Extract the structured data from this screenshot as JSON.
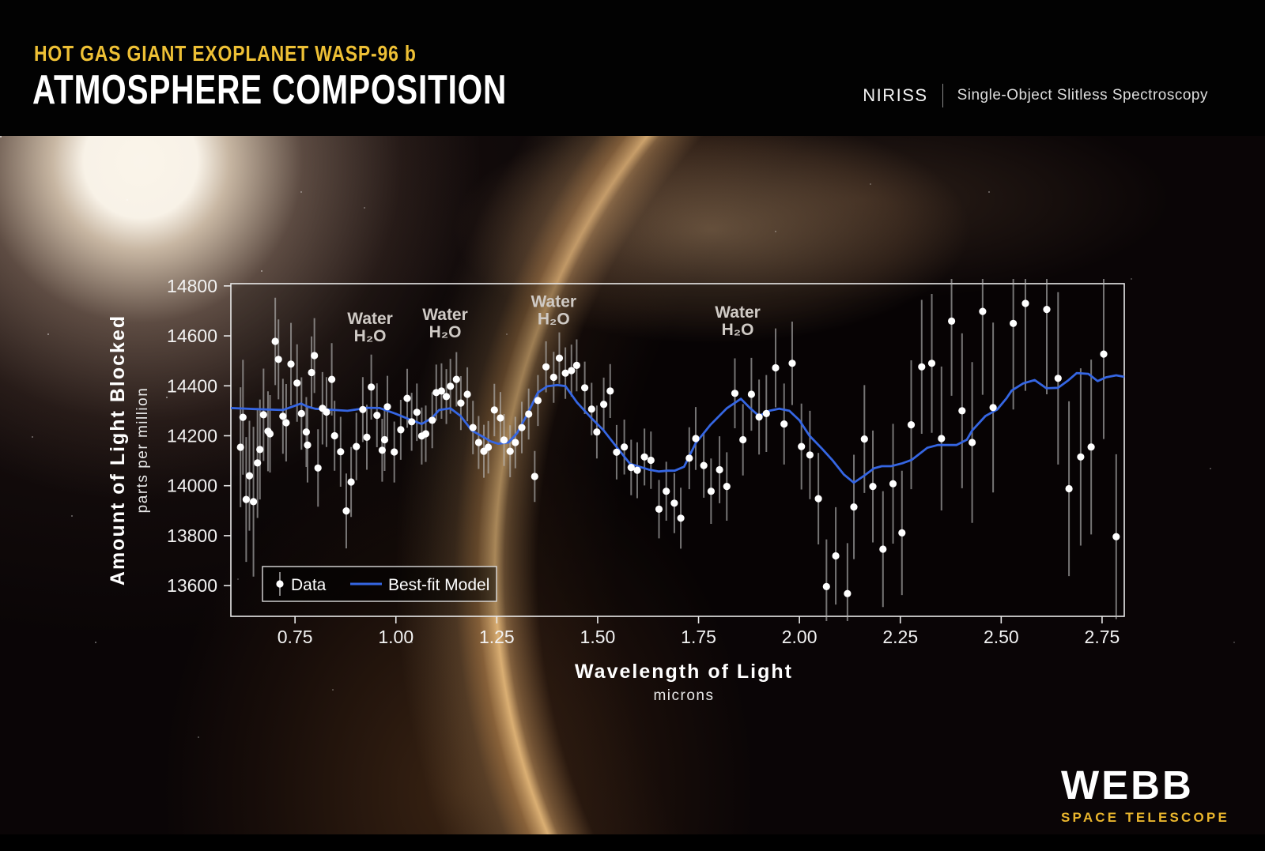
{
  "header": {
    "eyebrow": "HOT GAS GIANT EXOPLANET WASP-96 b",
    "title": "ATMOSPHERE COMPOSITION",
    "instrument": "NIRISS",
    "instrument_desc": "Single-Object Slitless Spectroscopy"
  },
  "logo": {
    "name": "WEBB",
    "sub": "SPACE TELESCOPE"
  },
  "chart_data": {
    "type": "scatter",
    "xlabel": "Wavelength of Light",
    "xlabel_sub": "microns",
    "ylabel": "Amount of Light Blocked",
    "ylabel_sub": "parts per million",
    "xlim": [
      0.591,
      2.805
    ],
    "ylim": [
      13477,
      14809
    ],
    "grid": false,
    "legend_position": "lower-left",
    "x_ticks": [
      0.75,
      1.0,
      1.25,
      1.5,
      1.75,
      2.0,
      2.25,
      2.5,
      2.75
    ],
    "x_tick_labels": [
      "0.75",
      "1.00",
      "1.25",
      "1.50",
      "1.75",
      "2.00",
      "2.25",
      "2.50",
      "2.75"
    ],
    "y_ticks": [
      14800,
      14600,
      14400,
      14200,
      14000,
      13800,
      13600
    ],
    "y_tick_labels": [
      "14800",
      "14600",
      "14400",
      "14200",
      "14000",
      "13800",
      "13600"
    ],
    "legend": {
      "data_label": "Data",
      "model_label": "Best-fit Model"
    },
    "annotations": [
      {
        "x": 0.936,
        "y": 14648,
        "line1": "Water",
        "line2": "H₂O"
      },
      {
        "x": 1.122,
        "y": 14664,
        "line1": "Water",
        "line2": "H₂O"
      },
      {
        "x": 1.391,
        "y": 14715,
        "line1": "Water",
        "line2": "H₂O"
      },
      {
        "x": 1.847,
        "y": 14673,
        "line1": "Water",
        "line2": "H₂O"
      }
    ],
    "colors": {
      "point": "#ffffff",
      "error_bar": "#b9b9b9",
      "model": "#3566e3",
      "axis": "#e9e9e9",
      "text": "#f2f2f2",
      "annotation": "#cfcac5",
      "accent_yellow": "#eec035"
    },
    "series": [
      {
        "name": "Data",
        "type": "scatter-errorbar",
        "points": [
          [
            0.615,
            14154,
            240
          ],
          [
            0.621,
            14274,
            230
          ],
          [
            0.629,
            13945,
            250
          ],
          [
            0.637,
            14040,
            220
          ],
          [
            0.647,
            13936,
            300
          ],
          [
            0.657,
            14091,
            220
          ],
          [
            0.663,
            14145,
            200
          ],
          [
            0.672,
            14284,
            185
          ],
          [
            0.683,
            14218,
            160
          ],
          [
            0.688,
            14208,
            155
          ],
          [
            0.701,
            14578,
            175
          ],
          [
            0.709,
            14506,
            160
          ],
          [
            0.72,
            14278,
            150
          ],
          [
            0.728,
            14252,
            155
          ],
          [
            0.74,
            14487,
            165
          ],
          [
            0.755,
            14411,
            155
          ],
          [
            0.766,
            14289,
            145
          ],
          [
            0.778,
            14215,
            140
          ],
          [
            0.781,
            14163,
            150
          ],
          [
            0.791,
            14453,
            145
          ],
          [
            0.798,
            14521,
            150
          ],
          [
            0.807,
            14071,
            155
          ],
          [
            0.818,
            14310,
            145
          ],
          [
            0.828,
            14295,
            140
          ],
          [
            0.841,
            14426,
            145
          ],
          [
            0.848,
            14200,
            140
          ],
          [
            0.863,
            14136,
            140
          ],
          [
            0.877,
            13899,
            150
          ],
          [
            0.889,
            14015,
            140
          ],
          [
            0.902,
            14157,
            135
          ],
          [
            0.918,
            14305,
            130
          ],
          [
            0.928,
            14194,
            130
          ],
          [
            0.939,
            14395,
            130
          ],
          [
            0.953,
            14282,
            128
          ],
          [
            0.966,
            14142,
            126
          ],
          [
            0.972,
            14184,
            125
          ],
          [
            0.979,
            14316,
            124
          ],
          [
            0.996,
            14135,
            122
          ],
          [
            1.012,
            14224,
            120
          ],
          [
            1.028,
            14350,
            118
          ],
          [
            1.039,
            14256,
            116
          ],
          [
            1.052,
            14294,
            115
          ],
          [
            1.064,
            14199,
            114
          ],
          [
            1.074,
            14208,
            113
          ],
          [
            1.09,
            14262,
            112
          ],
          [
            1.1,
            14373,
            112
          ],
          [
            1.113,
            14379,
            111
          ],
          [
            1.125,
            14357,
            110
          ],
          [
            1.135,
            14398,
            110
          ],
          [
            1.15,
            14426,
            109
          ],
          [
            1.161,
            14331,
            108
          ],
          [
            1.177,
            14366,
            108
          ],
          [
            1.191,
            14233,
            107
          ],
          [
            1.205,
            14173,
            106
          ],
          [
            1.218,
            14138,
            106
          ],
          [
            1.229,
            14154,
            105
          ],
          [
            1.244,
            14303,
            105
          ],
          [
            1.259,
            14271,
            104
          ],
          [
            1.268,
            14183,
            104
          ],
          [
            1.283,
            14138,
            104
          ],
          [
            1.296,
            14173,
            103
          ],
          [
            1.312,
            14233,
            103
          ],
          [
            1.329,
            14287,
            102
          ],
          [
            1.344,
            14037,
            102
          ],
          [
            1.352,
            14341,
            102
          ],
          [
            1.372,
            14476,
            102
          ],
          [
            1.391,
            14434,
            102
          ],
          [
            1.405,
            14511,
            103
          ],
          [
            1.42,
            14451,
            103
          ],
          [
            1.435,
            14461,
            104
          ],
          [
            1.448,
            14482,
            104
          ],
          [
            1.468,
            14392,
            105
          ],
          [
            1.485,
            14307,
            105
          ],
          [
            1.498,
            14215,
            106
          ],
          [
            1.515,
            14326,
            107
          ],
          [
            1.531,
            14379,
            108
          ],
          [
            1.547,
            14134,
            109
          ],
          [
            1.566,
            14155,
            110
          ],
          [
            1.583,
            14073,
            111
          ],
          [
            1.598,
            14062,
            112
          ],
          [
            1.616,
            14115,
            114
          ],
          [
            1.632,
            14102,
            115
          ],
          [
            1.652,
            13906,
            117
          ],
          [
            1.67,
            13978,
            118
          ],
          [
            1.69,
            13930,
            120
          ],
          [
            1.706,
            13870,
            122
          ],
          [
            1.727,
            14110,
            124
          ],
          [
            1.743,
            14189,
            126
          ],
          [
            1.763,
            14081,
            129
          ],
          [
            1.781,
            13978,
            131
          ],
          [
            1.802,
            14064,
            134
          ],
          [
            1.82,
            13997,
            137
          ],
          [
            1.84,
            14370,
            140
          ],
          [
            1.86,
            14184,
            143
          ],
          [
            1.881,
            14366,
            146
          ],
          [
            1.9,
            14275,
            150
          ],
          [
            1.918,
            14289,
            154
          ],
          [
            1.941,
            14472,
            158
          ],
          [
            1.962,
            14247,
            162
          ],
          [
            1.982,
            14490,
            167
          ],
          [
            2.005,
            14157,
            172
          ],
          [
            2.026,
            14123,
            177
          ],
          [
            2.047,
            13948,
            183
          ],
          [
            2.067,
            13596,
            189
          ],
          [
            2.09,
            13719,
            195
          ],
          [
            2.119,
            13568,
            202
          ],
          [
            2.135,
            13915,
            209
          ],
          [
            2.161,
            14187,
            216
          ],
          [
            2.182,
            13997,
            224
          ],
          [
            2.207,
            13746,
            232
          ],
          [
            2.232,
            14008,
            240
          ],
          [
            2.254,
            13811,
            249
          ],
          [
            2.277,
            14244,
            258
          ],
          [
            2.303,
            14476,
            268
          ],
          [
            2.328,
            14490,
            278
          ],
          [
            2.352,
            14189,
            288
          ],
          [
            2.377,
            14659,
            299
          ],
          [
            2.403,
            14300,
            310
          ],
          [
            2.428,
            14173,
            322
          ],
          [
            2.454,
            14698,
            334
          ],
          [
            2.48,
            14313,
            340
          ],
          [
            2.53,
            14650,
            345
          ],
          [
            2.56,
            14730,
            350
          ],
          [
            2.613,
            14706,
            340
          ],
          [
            2.641,
            14430,
            345
          ],
          [
            2.668,
            13988,
            350
          ],
          [
            2.697,
            14115,
            355
          ],
          [
            2.723,
            14155,
            350
          ],
          [
            2.754,
            14527,
            340
          ],
          [
            2.785,
            13796,
            330
          ]
        ]
      },
      {
        "name": "Best-fit Model",
        "type": "line",
        "points": [
          [
            0.591,
            14311
          ],
          [
            0.65,
            14307
          ],
          [
            0.72,
            14303
          ],
          [
            0.765,
            14329
          ],
          [
            0.78,
            14317
          ],
          [
            0.8,
            14308
          ],
          [
            0.88,
            14300
          ],
          [
            0.93,
            14312
          ],
          [
            0.96,
            14311
          ],
          [
            1.0,
            14288
          ],
          [
            1.03,
            14268
          ],
          [
            1.064,
            14247
          ],
          [
            1.09,
            14272
          ],
          [
            1.107,
            14303
          ],
          [
            1.135,
            14310
          ],
          [
            1.16,
            14280
          ],
          [
            1.188,
            14221
          ],
          [
            1.217,
            14195
          ],
          [
            1.234,
            14178
          ],
          [
            1.253,
            14168
          ],
          [
            1.279,
            14173
          ],
          [
            1.3,
            14210
          ],
          [
            1.325,
            14284
          ],
          [
            1.352,
            14373
          ],
          [
            1.375,
            14398
          ],
          [
            1.4,
            14403
          ],
          [
            1.42,
            14399
          ],
          [
            1.449,
            14333
          ],
          [
            1.485,
            14270
          ],
          [
            1.515,
            14221
          ],
          [
            1.547,
            14155
          ],
          [
            1.58,
            14088
          ],
          [
            1.626,
            14065
          ],
          [
            1.652,
            14057
          ],
          [
            1.673,
            14060
          ],
          [
            1.691,
            14060
          ],
          [
            1.714,
            14076
          ],
          [
            1.743,
            14171
          ],
          [
            1.78,
            14245
          ],
          [
            1.82,
            14310
          ],
          [
            1.855,
            14348
          ],
          [
            1.878,
            14310
          ],
          [
            1.9,
            14279
          ],
          [
            1.925,
            14300
          ],
          [
            1.95,
            14308
          ],
          [
            1.975,
            14300
          ],
          [
            2.0,
            14262
          ],
          [
            2.025,
            14200
          ],
          [
            2.055,
            14150
          ],
          [
            2.083,
            14100
          ],
          [
            2.11,
            14045
          ],
          [
            2.135,
            14012
          ],
          [
            2.16,
            14040
          ],
          [
            2.185,
            14070
          ],
          [
            2.204,
            14078
          ],
          [
            2.227,
            14078
          ],
          [
            2.255,
            14090
          ],
          [
            2.278,
            14103
          ],
          [
            2.317,
            14152
          ],
          [
            2.343,
            14163
          ],
          [
            2.389,
            14163
          ],
          [
            2.415,
            14184
          ],
          [
            2.428,
            14221
          ],
          [
            2.461,
            14279
          ],
          [
            2.49,
            14305
          ],
          [
            2.513,
            14350
          ],
          [
            2.526,
            14381
          ],
          [
            2.555,
            14410
          ],
          [
            2.583,
            14423
          ],
          [
            2.612,
            14390
          ],
          [
            2.641,
            14392
          ],
          [
            2.665,
            14420
          ],
          [
            2.687,
            14451
          ],
          [
            2.716,
            14448
          ],
          [
            2.739,
            14419
          ],
          [
            2.76,
            14434
          ],
          [
            2.785,
            14442
          ],
          [
            2.805,
            14436
          ]
        ]
      }
    ]
  }
}
